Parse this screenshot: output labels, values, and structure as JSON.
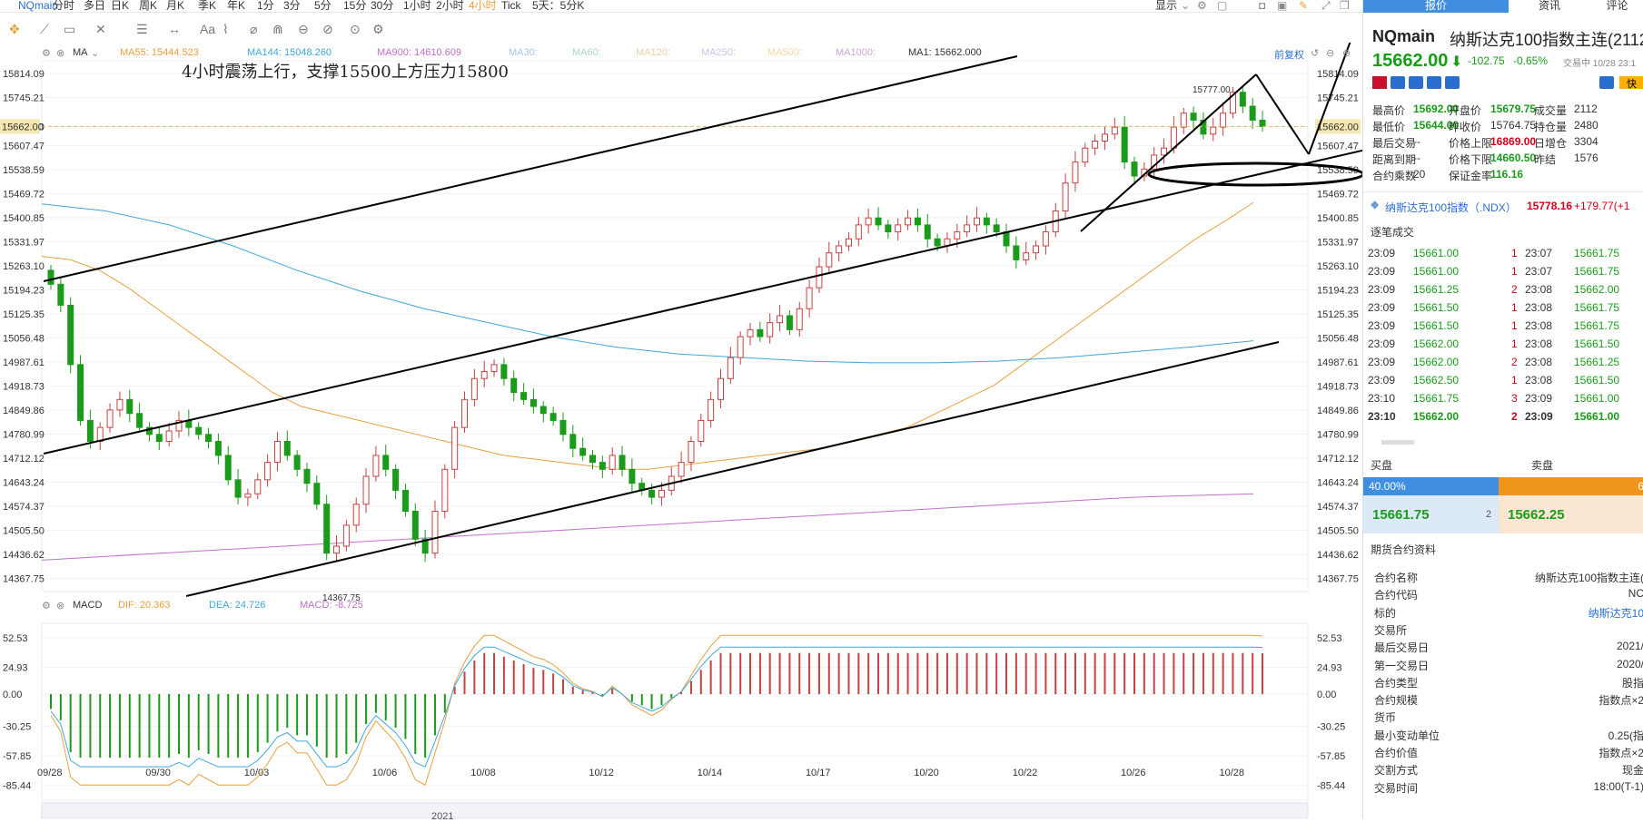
{
  "topbar": {
    "symbol": "NQmain",
    "periods": [
      "分时",
      "多日",
      "日K",
      "周K",
      "月K",
      "季K",
      "年K",
      "1分",
      "3分",
      "5分",
      "15分",
      "30分",
      "1小时",
      "2小时",
      "4小时",
      "Tick",
      "5天：5分K"
    ],
    "active_period": "4小时",
    "display_label": "显示"
  },
  "drawbar": {
    "font_tool": "Aa"
  },
  "ma_legend": {
    "ma_label": "MA",
    "items": [
      {
        "text": "MA55: 15444.523",
        "color": "#e8a040"
      },
      {
        "text": "MA144: 15048.260",
        "color": "#40a8d8"
      },
      {
        "text": "MA900: 14610.609",
        "color": "#c070c8"
      },
      {
        "text": "MA30:",
        "color": "#a8c8e8"
      },
      {
        "text": "MA60:",
        "color": "#a8d8c8"
      },
      {
        "text": "MA120:",
        "color": "#e8d0a8"
      },
      {
        "text": "MA250:",
        "color": "#d0c0e8"
      },
      {
        "text": "MA500:",
        "color": "#f0d8a0"
      },
      {
        "text": "MA1000:",
        "color": "#c8a8d8"
      },
      {
        "text": "MA1: 15662.000",
        "color": "#333333"
      }
    ],
    "restore_label": "前复权"
  },
  "annotation": "4小时震荡上行，支撑15500上方压力15800",
  "chart_data": {
    "type": "candlestick",
    "title": "",
    "y_ticks": [
      "15814.09",
      "15745.21",
      "15662.00",
      "15607.47",
      "15538.59",
      "15469.72",
      "15400.85",
      "15331.97",
      "15263.10",
      "15194.23",
      "15125.35",
      "15056.48",
      "14987.61",
      "14918.73",
      "14849.86",
      "14780.99",
      "14712.12",
      "14643.24",
      "14574.37",
      "14505.50",
      "14436.62",
      "14367.75"
    ],
    "x_ticks": [
      "09/28",
      "09/30",
      "10/03",
      "10/06",
      "10/08",
      "10/12",
      "10/14",
      "10/17",
      "10/20",
      "10/22",
      "10/26",
      "10/28"
    ],
    "ylim": [
      14330,
      15850
    ],
    "current_price": 15662.0,
    "high_label": "15777.00",
    "low_label": "14367.75",
    "year_label": "2021",
    "closes": [
      15210,
      15150,
      14980,
      14820,
      14760,
      14800,
      14850,
      14880,
      14840,
      14800,
      14780,
      14760,
      14790,
      14820,
      14800,
      14780,
      14760,
      14720,
      14650,
      14600,
      14610,
      14650,
      14700,
      14760,
      14720,
      14680,
      14640,
      14580,
      14440,
      14460,
      14520,
      14580,
      14660,
      14720,
      14680,
      14620,
      14560,
      14480,
      14440,
      14560,
      14680,
      14800,
      14880,
      14940,
      14960,
      14980,
      14940,
      14900,
      14880,
      14860,
      14840,
      14820,
      14780,
      14740,
      14720,
      14700,
      14680,
      14720,
      14680,
      14640,
      14620,
      14600,
      14620,
      14660,
      14700,
      14760,
      14820,
      14880,
      14940,
      15000,
      15060,
      15080,
      15060,
      15100,
      15120,
      15080,
      15140,
      15200,
      15260,
      15300,
      15320,
      15340,
      15380,
      15400,
      15380,
      15360,
      15380,
      15400,
      15380,
      15340,
      15320,
      15340,
      15360,
      15380,
      15400,
      15380,
      15360,
      15320,
      15280,
      15300,
      15320,
      15360,
      15420,
      15500,
      15560,
      15600,
      15620,
      15640,
      15660,
      15560,
      15520,
      15540,
      15580,
      15600,
      15660,
      15700,
      15680,
      15640,
      15660,
      15700,
      15760,
      15720,
      15680,
      15662
    ],
    "ma55": [
      15290,
      15280,
      15250,
      15200,
      15140,
      15080,
      15020,
      14960,
      14900,
      14860,
      14840,
      14820,
      14800,
      14780,
      14760,
      14740,
      14720,
      14710,
      14700,
      14690,
      14680,
      14680,
      14690,
      14700,
      14710,
      14720,
      14730,
      14740,
      14760,
      14780,
      14800,
      14840,
      14880,
      14920,
      14980,
      15040,
      15100,
      15160,
      15220,
      15280,
      15340,
      15390,
      15444
    ],
    "ma144": [
      15440,
      15420,
      15380,
      15320,
      15250,
      15190,
      15140,
      15100,
      15060,
      15030,
      15010,
      15000,
      14990,
      14985,
      14985,
      14990,
      15000,
      15015,
      15030,
      15048
    ],
    "ma900": [
      14420,
      14440,
      14460,
      14480,
      14500,
      14520,
      14540,
      14560,
      14580,
      14600,
      14610
    ],
    "macd": {
      "label": "MACD",
      "dif": "DIF: 20.363",
      "dea": "DEA: 24.726",
      "macd": "MACD: -8.725",
      "y_ticks": [
        "52.53",
        "24.93",
        "0.00",
        "-30.25",
        "-57.85",
        "-85.44"
      ],
      "ylim": [
        -95,
        62
      ]
    }
  },
  "panel": {
    "tabs": [
      "报价",
      "资讯",
      "评论"
    ],
    "symbol": "NQmain",
    "name": "纳斯达克100指数主连(2112)",
    "price": "15662.00",
    "arrow": "⬇",
    "change": "-102.75",
    "change_pct": "-0.65%",
    "status": "交易中 10/28 23:1",
    "fast_btn": "快",
    "stats": [
      {
        "k": "最高价",
        "v": "15692.00",
        "c": "green"
      },
      {
        "k": "开盘价",
        "v": "15679.75",
        "c": "green"
      },
      {
        "k": "成交量",
        "v": "2112",
        "c": ""
      },
      {
        "k": "最低价",
        "v": "15644.00",
        "c": "green"
      },
      {
        "k": "昨收价",
        "v": "15764.75",
        "c": ""
      },
      {
        "k": "持仓量",
        "v": "2480",
        "c": ""
      },
      {
        "k": "最后交易",
        "v": "--",
        "c": ""
      },
      {
        "k": "价格上限",
        "v": "16869.00",
        "c": "red"
      },
      {
        "k": "日增仓",
        "v": "3304",
        "c": ""
      },
      {
        "k": "距离到期",
        "v": "--",
        "c": ""
      },
      {
        "k": "价格下限",
        "v": "14660.50",
        "c": "green"
      },
      {
        "k": "昨结",
        "v": "1576",
        "c": ""
      },
      {
        "k": "合约乘数",
        "v": "20",
        "c": ""
      },
      {
        "k": "保证金率",
        "v": "116.16",
        "c": "green"
      }
    ],
    "index_name": "纳斯达克100指数（.NDX）",
    "index_price": "15778.16",
    "index_change": "+179.77(+1",
    "ticks_title": "逐笔成交",
    "ticks": [
      [
        "23:09",
        "15661.00",
        "1",
        "23:07",
        "15661.75"
      ],
      [
        "23:09",
        "15661.00",
        "1",
        "23:07",
        "15661.75"
      ],
      [
        "23:09",
        "15661.25",
        "2",
        "23:08",
        "15662.00"
      ],
      [
        "23:09",
        "15661.50",
        "1",
        "23:08",
        "15661.75"
      ],
      [
        "23:09",
        "15661.50",
        "1",
        "23:08",
        "15661.75"
      ],
      [
        "23:09",
        "15662.00",
        "1",
        "23:08",
        "15661.50"
      ],
      [
        "23:09",
        "15662.00",
        "2",
        "23:08",
        "15661.25"
      ],
      [
        "23:09",
        "15662.50",
        "1",
        "23:08",
        "15661.50"
      ],
      [
        "23:10",
        "15661.75",
        "3",
        "23:09",
        "15661.00"
      ],
      [
        "23:10",
        "15662.00",
        "2",
        "23:09",
        "15661.00"
      ]
    ],
    "buy_label": "买盘",
    "sell_label": "卖盘",
    "buy_pct": "40.00%",
    "sell_pct": "6",
    "bid_price": "15661.75",
    "bid_qty": "2",
    "ask_price": "15662.25",
    "contract_title": "期货合约资料",
    "contract": [
      {
        "k": "合约名称",
        "v": "纳斯达克100指数主连("
      },
      {
        "k": "合约代码",
        "v": "NC"
      },
      {
        "k": "标的",
        "v": "纳斯达克10"
      },
      {
        "k": "交易所",
        "v": ""
      },
      {
        "k": "最后交易日",
        "v": "2021/"
      },
      {
        "k": "第一交易日",
        "v": "2020/"
      },
      {
        "k": "合约类型",
        "v": "股指"
      },
      {
        "k": "合约规模",
        "v": "指数点×2"
      },
      {
        "k": "货币",
        "v": ""
      },
      {
        "k": "最小变动单位",
        "v": "0.25(指"
      },
      {
        "k": "合约价值",
        "v": "指数点×2"
      },
      {
        "k": "交割方式",
        "v": "现金"
      },
      {
        "k": "交易时间",
        "v": "18:00(T-1)"
      }
    ]
  }
}
